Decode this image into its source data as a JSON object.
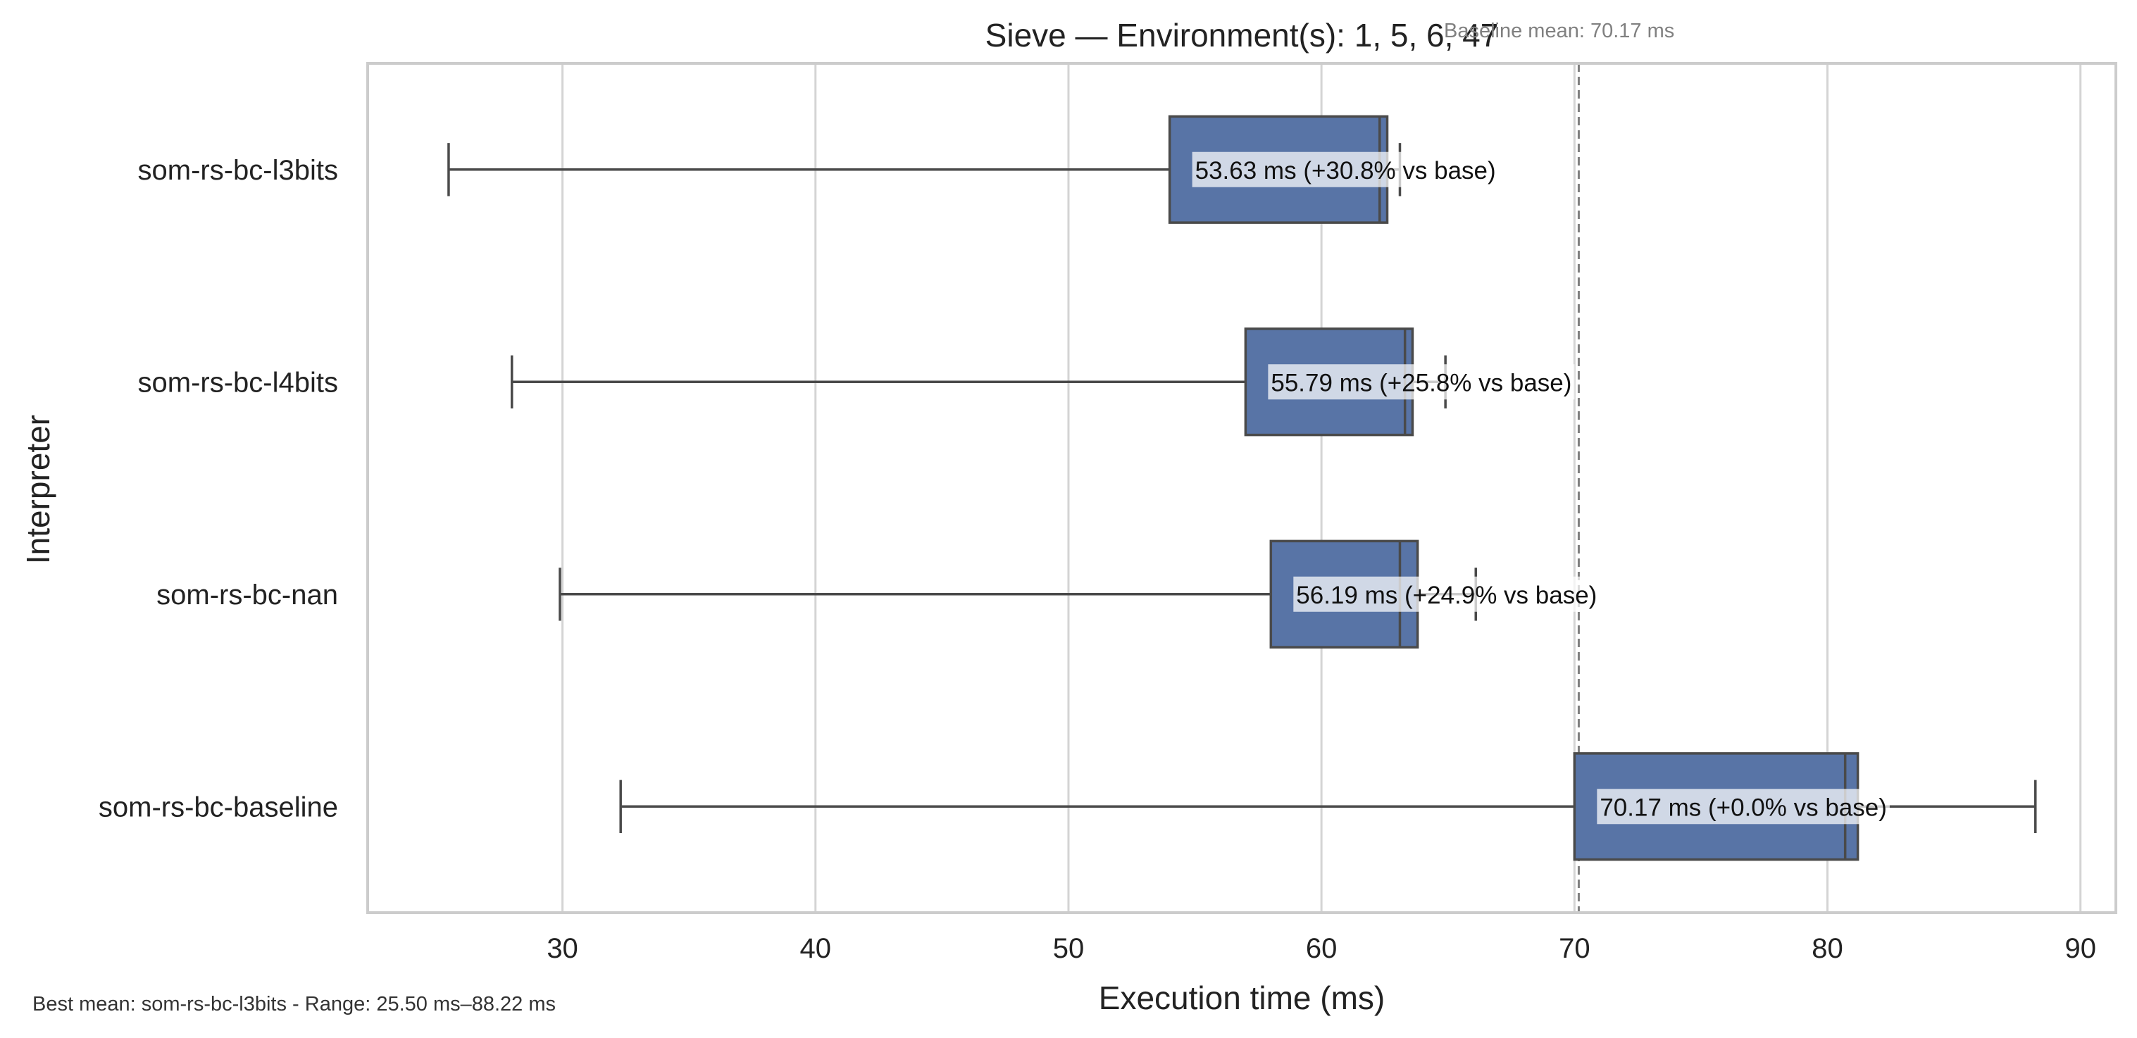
{
  "chart_data": {
    "type": "box",
    "orientation": "horizontal",
    "title": "Sieve — Environment(s): 1, 5, 6, 47",
    "xlabel": "Execution time (ms)",
    "ylabel": "Interpreter",
    "xlim": [
      22.3,
      91.4
    ],
    "xticks": [
      30,
      40,
      50,
      60,
      70,
      80,
      90
    ],
    "grid": "vertical",
    "footnote": "Best mean: som-rs-bc-l3bits - Range: 25.50 ms–88.22 ms",
    "reference_line": {
      "value": 70.17,
      "label": "Baseline mean: 70.17 ms",
      "style": "dashed"
    },
    "colors": {
      "box": "#5874a6",
      "edge": "#4a4a4a",
      "grid": "#d4d4d4",
      "reference": "#808080"
    },
    "series": [
      {
        "category": "som-rs-bc-l3bits",
        "whisker_low": 25.5,
        "q1": 54.0,
        "median": 62.3,
        "q3": 62.6,
        "whisker_high": 63.1,
        "annotation": "53.63 ms  (+30.8% vs base)"
      },
      {
        "category": "som-rs-bc-l4bits",
        "whisker_low": 28.0,
        "q1": 57.0,
        "median": 63.3,
        "q3": 63.6,
        "whisker_high": 64.9,
        "annotation": "55.79 ms  (+25.8% vs base)"
      },
      {
        "category": "som-rs-bc-nan",
        "whisker_low": 29.9,
        "q1": 58.0,
        "median": 63.1,
        "q3": 63.8,
        "whisker_high": 66.1,
        "annotation": "56.19 ms  (+24.9% vs base)"
      },
      {
        "category": "som-rs-bc-baseline",
        "whisker_low": 32.3,
        "q1": 70.0,
        "median": 80.7,
        "q3": 81.2,
        "whisker_high": 88.22,
        "annotation": "70.17 ms  (+0.0% vs base)"
      }
    ]
  }
}
